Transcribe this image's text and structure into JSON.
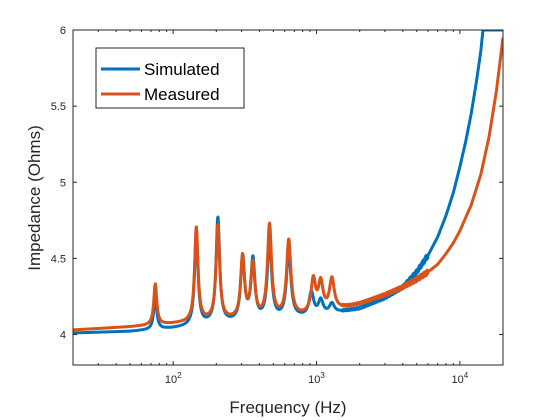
{
  "chart_data": {
    "type": "line",
    "xlabel": "Frequency (Hz)",
    "ylabel": "Impedance (Ohms)",
    "xscale": "log",
    "xlim": [
      20,
      20000
    ],
    "ylim": [
      3.8,
      6
    ],
    "x_ticks": [
      {
        "base": "10",
        "exp": "2",
        "value": 100
      },
      {
        "base": "10",
        "exp": "3",
        "value": 1000
      },
      {
        "base": "10",
        "exp": "4",
        "value": 10000
      }
    ],
    "y_ticks": [
      "4",
      "4.5",
      "5",
      "5.5",
      "6"
    ],
    "legend": {
      "position": "top-left",
      "entries": [
        "Simulated",
        "Measured"
      ]
    },
    "grid": false,
    "series": [
      {
        "name": "Simulated",
        "color": "#0072BD",
        "baseline": [
          [
            20,
            4.01
          ],
          [
            50,
            4.02
          ],
          [
            100,
            4.04
          ],
          [
            200,
            4.07
          ],
          [
            500,
            4.09
          ],
          [
            1000,
            4.12
          ],
          [
            2000,
            4.17
          ],
          [
            3000,
            4.24
          ],
          [
            4000,
            4.31
          ],
          [
            5000,
            4.41
          ],
          [
            6000,
            4.52
          ],
          [
            7000,
            4.64
          ],
          [
            8000,
            4.78
          ],
          [
            9000,
            4.93
          ],
          [
            10000,
            5.1
          ],
          [
            11000,
            5.27
          ],
          [
            12000,
            5.45
          ],
          [
            13000,
            5.65
          ],
          [
            14000,
            5.86
          ],
          [
            14500,
            6.0
          ]
        ],
        "peaks": [
          [
            75,
            4.25
          ],
          [
            145,
            4.67
          ],
          [
            205,
            4.76
          ],
          [
            305,
            4.5
          ],
          [
            360,
            4.48
          ],
          [
            470,
            4.62
          ],
          [
            640,
            4.55
          ],
          [
            920,
            4.27
          ],
          [
            1070,
            4.22
          ],
          [
            1280,
            4.2
          ]
        ]
      },
      {
        "name": "Measured",
        "color": "#D95319",
        "baseline": [
          [
            20,
            4.03
          ],
          [
            50,
            4.05
          ],
          [
            100,
            4.07
          ],
          [
            200,
            4.09
          ],
          [
            500,
            4.1
          ],
          [
            1000,
            4.13
          ],
          [
            2000,
            4.2
          ],
          [
            3000,
            4.26
          ],
          [
            4000,
            4.31
          ],
          [
            5000,
            4.36
          ],
          [
            6000,
            4.41
          ],
          [
            7000,
            4.46
          ],
          [
            8000,
            4.53
          ],
          [
            9000,
            4.6
          ],
          [
            10000,
            4.68
          ],
          [
            12000,
            4.85
          ],
          [
            14000,
            5.05
          ],
          [
            16000,
            5.3
          ],
          [
            18000,
            5.6
          ],
          [
            20000,
            5.95
          ]
        ],
        "peaks": [
          [
            75,
            4.33
          ],
          [
            145,
            4.7
          ],
          [
            205,
            4.71
          ],
          [
            305,
            4.5
          ],
          [
            360,
            4.45
          ],
          [
            470,
            4.71
          ],
          [
            640,
            4.61
          ],
          [
            950,
            4.35
          ],
          [
            1070,
            4.33
          ],
          [
            1280,
            4.36
          ]
        ]
      }
    ]
  }
}
